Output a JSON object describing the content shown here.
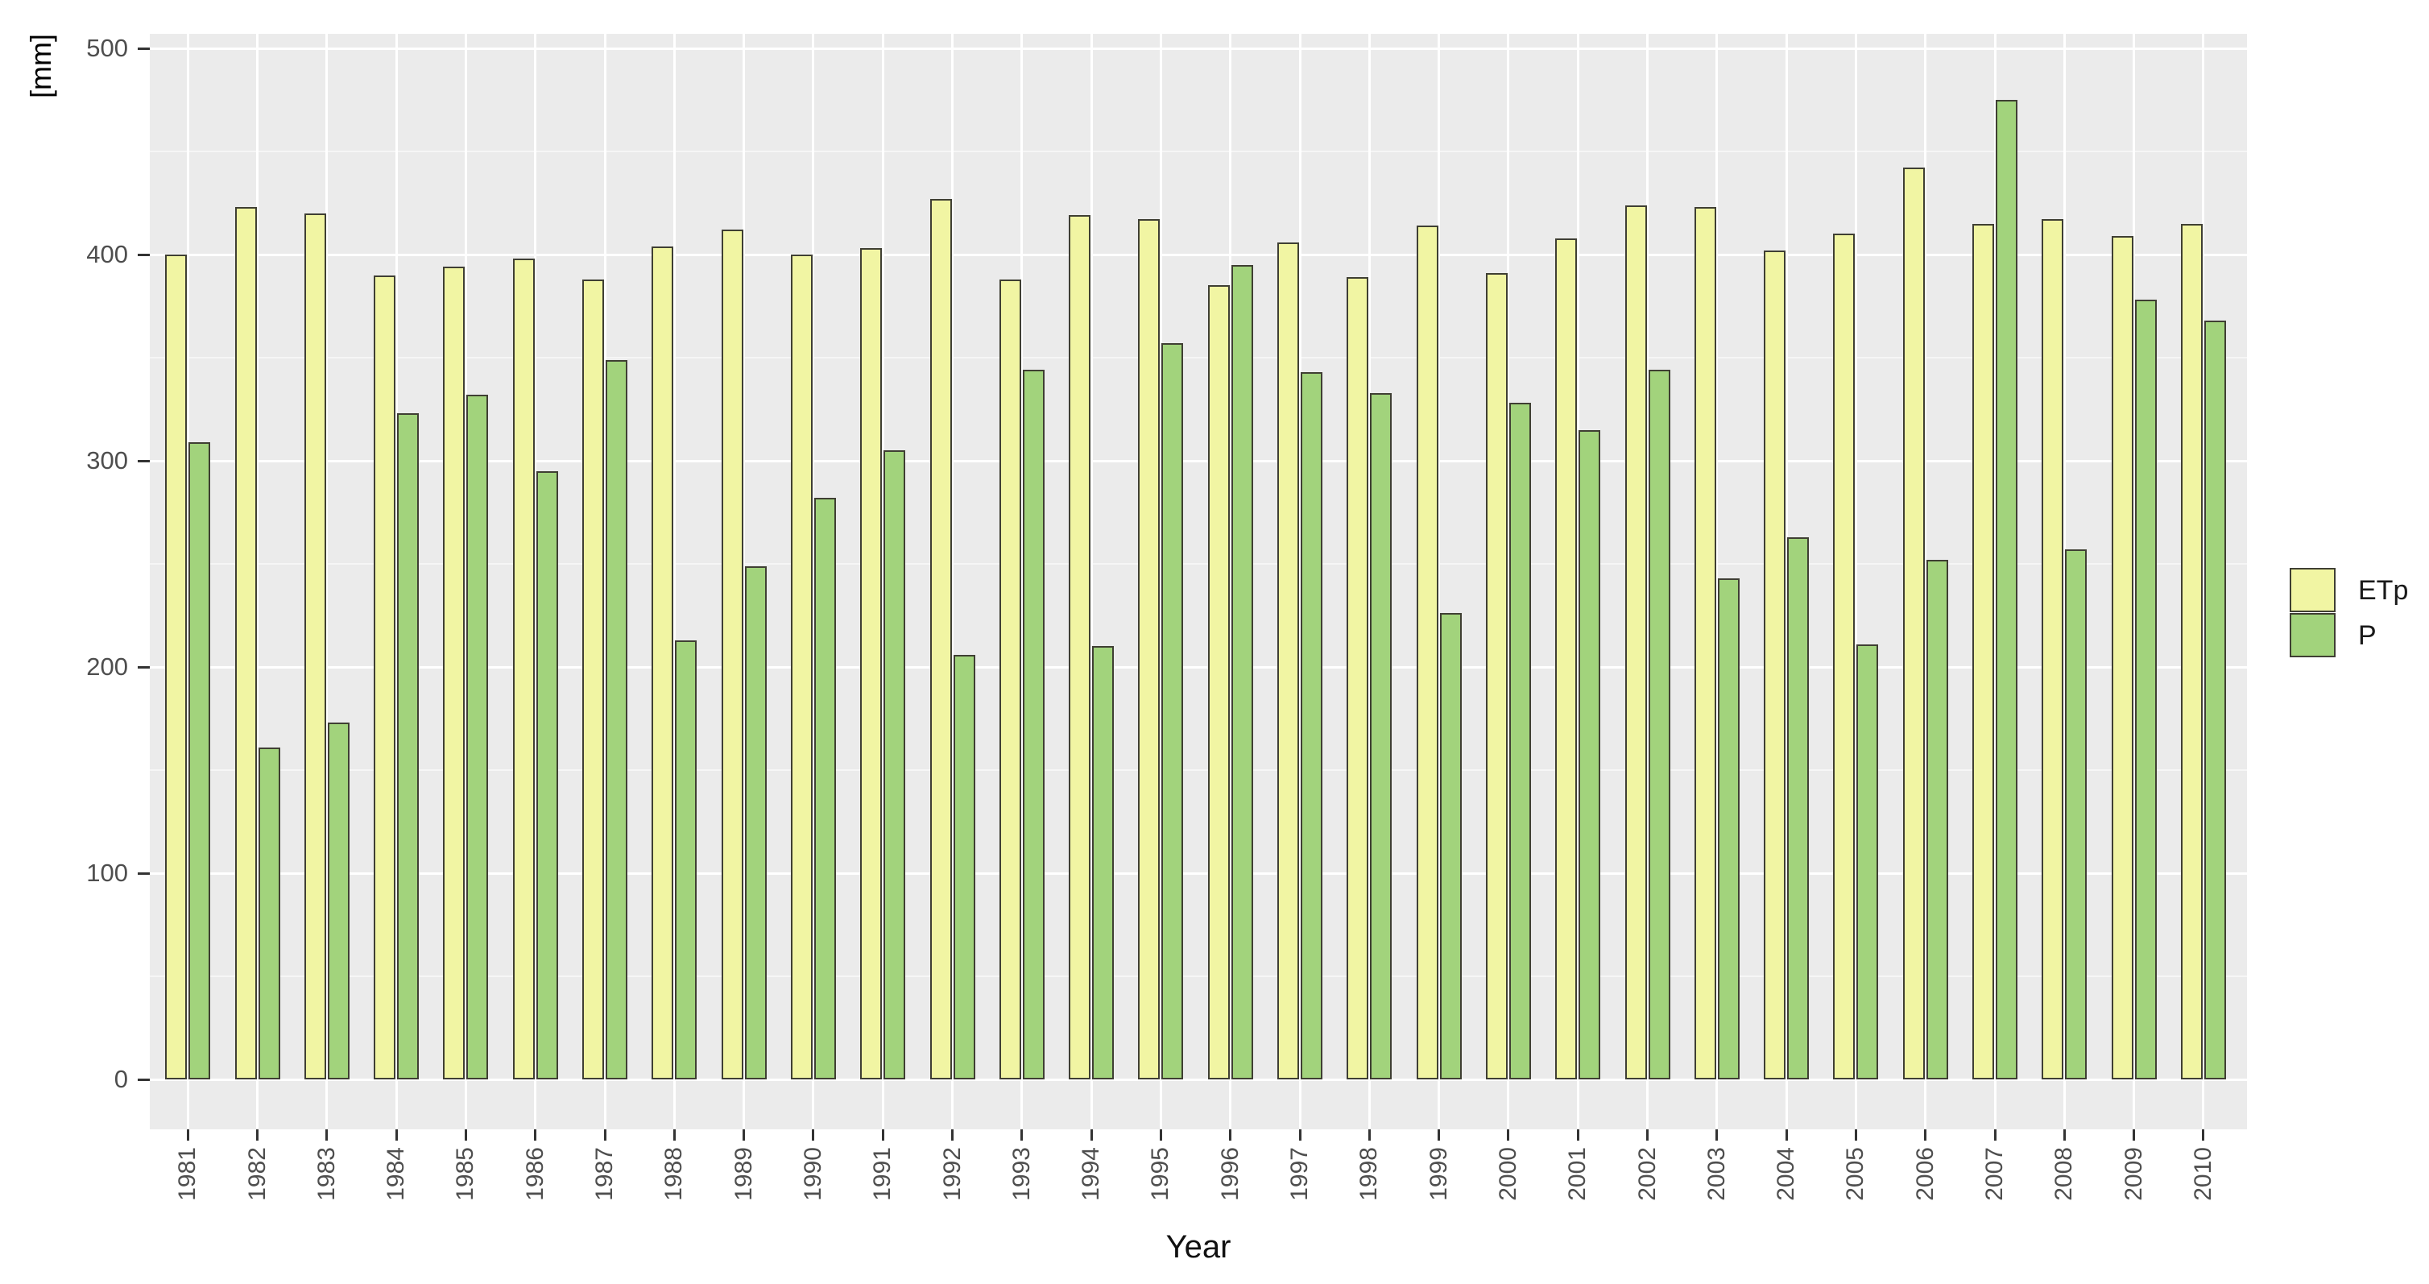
{
  "chart_data": {
    "type": "bar",
    "title": "",
    "xlabel": "Year",
    "ylabel": "[mm]",
    "ylim": [
      0,
      500
    ],
    "y_major_ticks": [
      0,
      100,
      200,
      300,
      400,
      500
    ],
    "y_minor_ticks": [
      50,
      150,
      250,
      350,
      450
    ],
    "grid": true,
    "legend_position": "right",
    "categories": [
      "1981",
      "1982",
      "1983",
      "1984",
      "1985",
      "1986",
      "1987",
      "1988",
      "1989",
      "1990",
      "1991",
      "1992",
      "1993",
      "1994",
      "1995",
      "1996",
      "1997",
      "1998",
      "1999",
      "2000",
      "2001",
      "2002",
      "2003",
      "2004",
      "2005",
      "2006",
      "2007",
      "2008",
      "2009",
      "2010"
    ],
    "series": [
      {
        "name": "ETp",
        "color": "#F1F5A3",
        "values": [
          400,
          423,
          420,
          390,
          394,
          398,
          388,
          404,
          412,
          400,
          403,
          427,
          388,
          419,
          417,
          385,
          406,
          389,
          414,
          391,
          408,
          424,
          423,
          402,
          410,
          442,
          415,
          417,
          409,
          415
        ]
      },
      {
        "name": "P",
        "color": "#A2D37C",
        "values": [
          309,
          161,
          173,
          323,
          332,
          295,
          349,
          213,
          249,
          282,
          305,
          206,
          344,
          210,
          357,
          395,
          343,
          333,
          226,
          328,
          315,
          344,
          243,
          263,
          211,
          252,
          475,
          257,
          378,
          368
        ]
      }
    ]
  },
  "style": {
    "panel_bg": "#EBEBEB",
    "grid_major_color": "#FFFFFF",
    "grid_minor_color": "rgba(255,255,255,0.55)",
    "bar_border_color": "#3F3F33",
    "tick_color": "#333333",
    "tick_label_color": "#4E4E4E",
    "axis_title_color": "#111111"
  }
}
